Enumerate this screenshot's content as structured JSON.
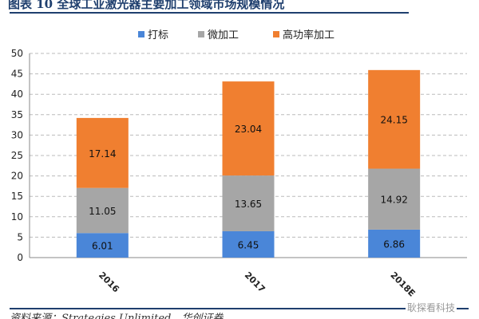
{
  "title": "图表 10   全球工业激光器主要加工领域市场规模情况",
  "source": "资料来源：Strategies Unlimited，华创证券",
  "watermark": "耿探看科技",
  "chart_data": {
    "type": "bar",
    "stacked": true,
    "categories": [
      "2016",
      "2017",
      "2018E"
    ],
    "series": [
      {
        "name": "打标",
        "values": [
          6.01,
          6.45,
          6.86
        ],
        "color": "#4a86d8"
      },
      {
        "name": "微加工",
        "values": [
          11.05,
          13.65,
          14.92
        ],
        "color": "#a6a6a6"
      },
      {
        "name": "高功率加工",
        "values": [
          17.14,
          23.04,
          24.15
        ],
        "color": "#f07f30"
      }
    ],
    "ylim": [
      0,
      50
    ],
    "yticks": [
      0,
      5,
      10,
      15,
      20,
      25,
      30,
      35,
      40,
      45,
      50
    ],
    "grid": true,
    "legend": "top"
  }
}
